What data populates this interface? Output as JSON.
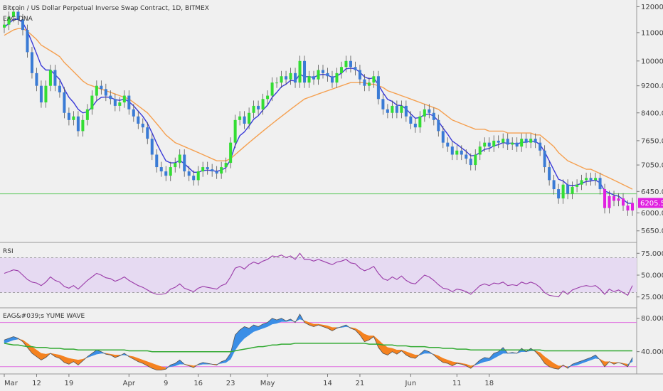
{
  "header": {
    "title": "Bitcoin / US Dollar Perpetual Inverse Swap Contract, 1D, BITMEX",
    "ema_label": "EAG-DNA"
  },
  "colors": {
    "background": "#f0f0f0",
    "bull_candle": "#33dd33",
    "bear_candle": "#3a7bd5",
    "magenta_candle": "#e020e0",
    "ema_fast": "#3a3ad8",
    "ema_slow": "#f5a050",
    "hline": "#66cc66",
    "price_tag": "#e020e0",
    "rsi_line": "#9a3aa8",
    "rsi_band": "#e6daf2",
    "wave_up": "#3a8ee6",
    "wave_down": "#f5821f",
    "wave_mid": "#33aa33",
    "wave_bands": "#e070e0"
  },
  "chart_data": [
    {
      "type": "candlestick",
      "panel": "price",
      "title": "Bitcoin / US Dollar Perpetual Inverse Swap Contract, 1D, BITMEX",
      "y_ticks": [
        "12000.0",
        "11000.0",
        "10000.0",
        "9200.0",
        "8400.0",
        "7650.0",
        "7050.0",
        "6450.0",
        "6000.0",
        "5650.0"
      ],
      "ylim": [
        5500,
        12100
      ],
      "last_price": "6205.5",
      "hline": 6400,
      "x_ticks": [
        "Mar",
        "12",
        "19",
        "Apr",
        "9",
        "16",
        "23",
        "May",
        "14",
        "21",
        "Jun",
        "11",
        "18"
      ],
      "closes": [
        11300,
        11600,
        11800,
        11500,
        11100,
        10300,
        9600,
        9200,
        8700,
        9200,
        9700,
        9200,
        9000,
        8400,
        8200,
        8300,
        7900,
        8200,
        8500,
        8900,
        9200,
        9100,
        8900,
        8800,
        8600,
        8700,
        8900,
        8500,
        8300,
        8100,
        8000,
        7700,
        7300,
        7000,
        6900,
        6800,
        7000,
        7100,
        7300,
        6900,
        6800,
        6700,
        6900,
        7000,
        6950,
        6900,
        6850,
        7000,
        7100,
        7600,
        8200,
        8300,
        8100,
        8400,
        8600,
        8500,
        8800,
        8900,
        9300,
        9300,
        9500,
        9400,
        9600,
        9300,
        10000,
        9300,
        9500,
        9400,
        9700,
        9600,
        9500,
        9300,
        9600,
        9800,
        10000,
        9800,
        9700,
        9400,
        9200,
        9300,
        9500,
        8800,
        8500,
        8400,
        8600,
        8400,
        8600,
        8300,
        8100,
        8000,
        8300,
        8500,
        8400,
        8200,
        7900,
        7600,
        7500,
        7300,
        7400,
        7300,
        7200,
        7050,
        7300,
        7500,
        7600,
        7500,
        7650,
        7600,
        7700,
        7550,
        7600,
        7500,
        7700,
        7600,
        7700,
        7600,
        7400,
        7000,
        6700,
        6500,
        6300,
        6600,
        6400,
        6550,
        6600,
        6700,
        6750,
        6700,
        6750,
        6500,
        6100,
        6350,
        6250,
        6300,
        6150,
        6050,
        6205
      ],
      "ema_fast_values": [
        11200,
        11350,
        11500,
        11500,
        11380,
        11050,
        10650,
        10250,
        9850,
        9700,
        9700,
        9550,
        9400,
        9100,
        8850,
        8700,
        8500,
        8400,
        8430,
        8570,
        8750,
        8850,
        8860,
        8850,
        8780,
        8760,
        8800,
        8720,
        8600,
        8450,
        8300,
        8110,
        7850,
        7580,
        7350,
        7150,
        7100,
        7100,
        7160,
        7080,
        6980,
        6880,
        6880,
        6920,
        6930,
        6920,
        6900,
        6930,
        6990,
        7180,
        7530,
        7780,
        7880,
        8040,
        8220,
        8320,
        8480,
        8620,
        8850,
        9000,
        9170,
        9250,
        9370,
        9350,
        9570,
        9480,
        9490,
        9460,
        9540,
        9560,
        9540,
        9460,
        9510,
        9600,
        9740,
        9760,
        9740,
        9630,
        9480,
        9420,
        9450,
        9230,
        8990,
        8790,
        8730,
        8620,
        8610,
        8510,
        8370,
        8250,
        8270,
        8350,
        8370,
        8310,
        8170,
        7980,
        7820,
        7640,
        7560,
        7470,
        7380,
        7270,
        7280,
        7350,
        7430,
        7450,
        7520,
        7550,
        7600,
        7580,
        7590,
        7560,
        7610,
        7610,
        7640,
        7630,
        7550,
        7370,
        7150,
        6930,
        6720,
        6680,
        6590,
        6580,
        6590,
        6630,
        6670,
        6680,
        6700,
        6640,
        6460,
        6420,
        6370,
        6350,
        6280,
        6200,
        6200
      ],
      "ema_slow_values": [
        10900,
        11000,
        11100,
        11150,
        11150,
        11050,
        10900,
        10750,
        10550,
        10450,
        10350,
        10250,
        10150,
        9950,
        9800,
        9650,
        9500,
        9350,
        9250,
        9200,
        9150,
        9100,
        9050,
        9000,
        8950,
        8900,
        8850,
        8800,
        8700,
        8600,
        8500,
        8400,
        8250,
        8100,
        7950,
        7800,
        7700,
        7600,
        7550,
        7500,
        7450,
        7400,
        7350,
        7300,
        7250,
        7200,
        7150,
        7150,
        7150,
        7200,
        7300,
        7400,
        7500,
        7600,
        7700,
        7800,
        7900,
        8000,
        8100,
        8200,
        8300,
        8400,
        8500,
        8600,
        8700,
        8800,
        8850,
        8900,
        8950,
        9000,
        9050,
        9100,
        9150,
        9200,
        9250,
        9300,
        9300,
        9300,
        9300,
        9250,
        9250,
        9200,
        9150,
        9050,
        9000,
        8950,
        8900,
        8850,
        8800,
        8750,
        8700,
        8650,
        8600,
        8550,
        8500,
        8400,
        8300,
        8200,
        8150,
        8100,
        8050,
        8000,
        7950,
        7950,
        7950,
        7900,
        7900,
        7900,
        7900,
        7850,
        7850,
        7850,
        7850,
        7850,
        7850,
        7800,
        7800,
        7700,
        7600,
        7500,
        7350,
        7250,
        7150,
        7100,
        7050,
        7000,
        6950,
        6950,
        6900,
        6850,
        6800,
        6750,
        6700,
        6650,
        6600,
        6550,
        6500
      ]
    },
    {
      "type": "line",
      "panel": "rsi",
      "name": "RSI",
      "y_ticks": [
        "75.0000",
        "50.0000",
        "25.0000"
      ],
      "ylim": [
        15,
        85
      ],
      "band": [
        30,
        70
      ],
      "values": [
        52,
        54,
        56,
        55,
        50,
        45,
        42,
        41,
        38,
        42,
        48,
        44,
        42,
        37,
        35,
        38,
        34,
        39,
        44,
        48,
        52,
        50,
        47,
        46,
        43,
        45,
        48,
        44,
        41,
        38,
        36,
        33,
        30,
        28,
        28,
        29,
        34,
        36,
        40,
        35,
        33,
        31,
        35,
        37,
        36,
        35,
        34,
        38,
        40,
        48,
        58,
        60,
        57,
        62,
        65,
        63,
        66,
        68,
        72,
        71,
        73,
        70,
        72,
        68,
        75,
        68,
        68,
        66,
        68,
        66,
        64,
        62,
        65,
        66,
        68,
        64,
        63,
        58,
        55,
        57,
        60,
        52,
        46,
        44,
        48,
        45,
        49,
        44,
        41,
        40,
        45,
        50,
        48,
        44,
        39,
        35,
        34,
        31,
        34,
        33,
        31,
        28,
        33,
        38,
        40,
        38,
        41,
        40,
        42,
        38,
        39,
        38,
        42,
        40,
        42,
        40,
        36,
        30,
        27,
        26,
        25,
        32,
        28,
        33,
        35,
        37,
        38,
        37,
        38,
        34,
        28,
        34,
        31,
        33,
        30,
        27,
        38
      ]
    },
    {
      "type": "area",
      "panel": "wave",
      "name": "EAG&#039;s YUME WAVE",
      "y_ticks": [
        "80.0000",
        "40.0000"
      ],
      "ylim": [
        15,
        90
      ],
      "upper_band": 75,
      "lower_band": 22,
      "fast": [
        54,
        56,
        58,
        56,
        52,
        45,
        38,
        34,
        30,
        33,
        38,
        34,
        32,
        27,
        25,
        28,
        24,
        29,
        34,
        38,
        42,
        40,
        37,
        36,
        33,
        35,
        38,
        34,
        31,
        28,
        26,
        23,
        20,
        18,
        18,
        19,
        24,
        26,
        30,
        25,
        23,
        21,
        25,
        27,
        26,
        25,
        24,
        28,
        30,
        38,
        60,
        66,
        70,
        68,
        72,
        70,
        73,
        75,
        80,
        78,
        80,
        77,
        79,
        75,
        85,
        75,
        72,
        70,
        72,
        70,
        68,
        65,
        68,
        70,
        72,
        68,
        66,
        60,
        52,
        54,
        58,
        45,
        38,
        36,
        40,
        37,
        41,
        36,
        33,
        32,
        37,
        42,
        40,
        36,
        31,
        27,
        26,
        23,
        26,
        25,
        23,
        20,
        25,
        30,
        33,
        32,
        38,
        40,
        45,
        38,
        39,
        38,
        44,
        40,
        44,
        40,
        34,
        26,
        22,
        20,
        19,
        24,
        20,
        25,
        27,
        29,
        31,
        33,
        36,
        30,
        22,
        28,
        25,
        27,
        25,
        22,
        33
      ],
      "slow": [
        50,
        52,
        54,
        55,
        54,
        50,
        46,
        42,
        38,
        37,
        38,
        37,
        36,
        34,
        32,
        31,
        30,
        31,
        33,
        35,
        37,
        38,
        38,
        37,
        36,
        36,
        36,
        35,
        34,
        32,
        30,
        28,
        26,
        24,
        22,
        21,
        22,
        23,
        25,
        25,
        24,
        23,
        24,
        25,
        25,
        25,
        25,
        26,
        27,
        31,
        42,
        50,
        56,
        60,
        64,
        66,
        68,
        70,
        73,
        74,
        76,
        76,
        77,
        76,
        79,
        77,
        75,
        73,
        73,
        72,
        71,
        69,
        69,
        69,
        70,
        69,
        68,
        65,
        61,
        59,
        59,
        54,
        49,
        45,
        44,
        42,
        42,
        40,
        38,
        36,
        36,
        38,
        38,
        37,
        35,
        32,
        30,
        28,
        27,
        26,
        25,
        23,
        24,
        26,
        28,
        29,
        32,
        35,
        38,
        38,
        38,
        38,
        40,
        40,
        41,
        41,
        39,
        34,
        30,
        26,
        23,
        23,
        22,
        23,
        24,
        26,
        28,
        30,
        32,
        31,
        28,
        28,
        27,
        27,
        26,
        25,
        28
      ],
      "mid": [
        50,
        49,
        48,
        48,
        47,
        46,
        46,
        45,
        45,
        45,
        44,
        44,
        44,
        43,
        43,
        43,
        42,
        42,
        42,
        42,
        42,
        42,
        42,
        42,
        42,
        42,
        42,
        41,
        41,
        41,
        41,
        41,
        40,
        40,
        40,
        40,
        40,
        40,
        40,
        40,
        40,
        40,
        40,
        40,
        40,
        40,
        40,
        40,
        40,
        40,
        41,
        42,
        43,
        44,
        45,
        46,
        46,
        47,
        48,
        48,
        49,
        49,
        49,
        50,
        50,
        50,
        50,
        50,
        50,
        50,
        50,
        50,
        50,
        50,
        50,
        50,
        50,
        50,
        50,
        49,
        49,
        49,
        48,
        48,
        48,
        47,
        47,
        47,
        46,
        46,
        46,
        46,
        45,
        45,
        45,
        44,
        44,
        44,
        43,
        43,
        43,
        42,
        42,
        42,
        42,
        42,
        42,
        42,
        42,
        42,
        42,
        42,
        42,
        42,
        42,
        42,
        42,
        41,
        41,
        41,
        41,
        41,
        41,
        41,
        41,
        41,
        41,
        41,
        41,
        41,
        41,
        41,
        41,
        41,
        41,
        41,
        41
      ]
    }
  ]
}
